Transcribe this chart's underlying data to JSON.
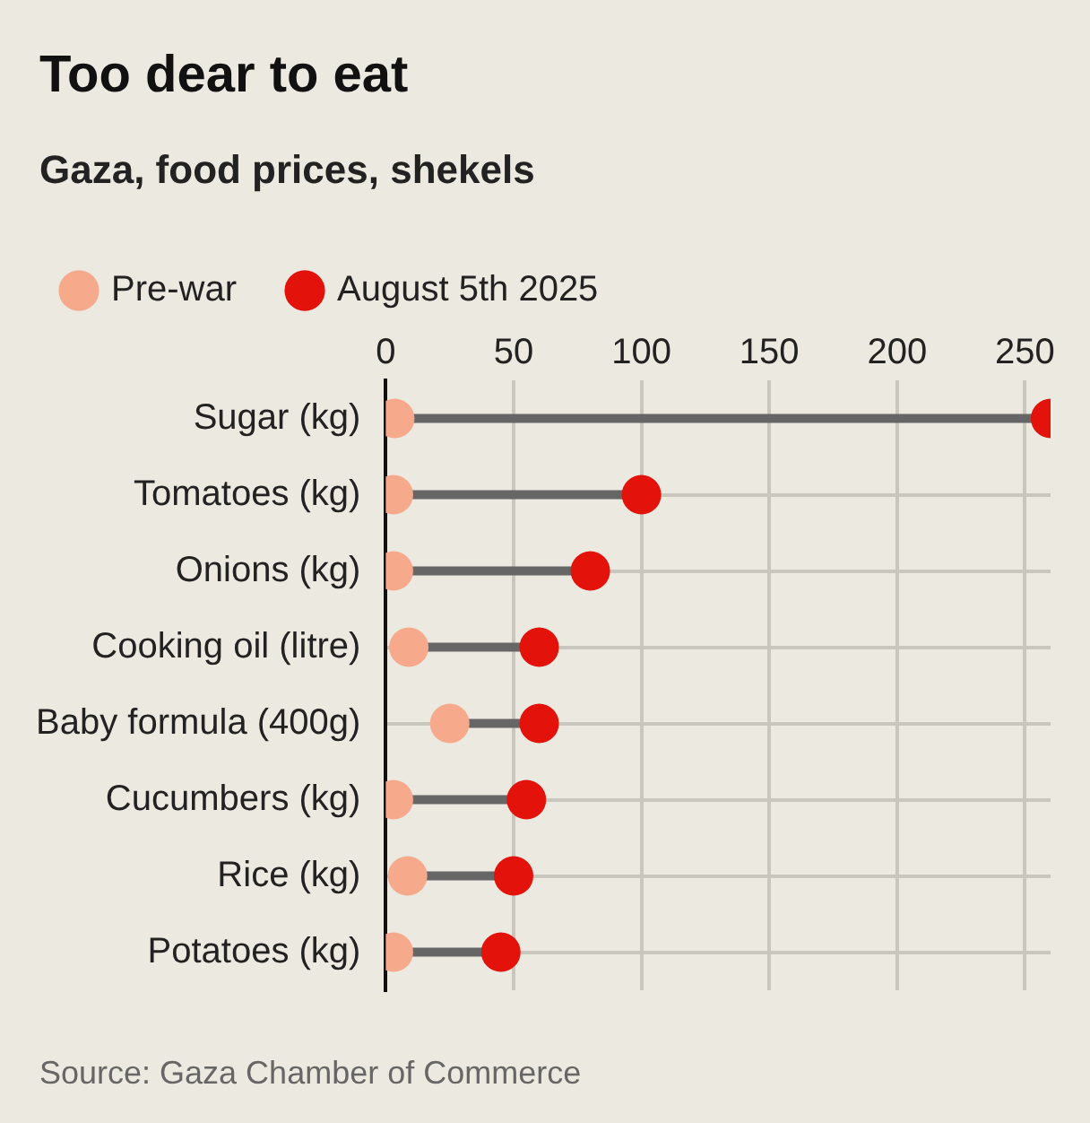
{
  "chart_data": {
    "type": "scatter",
    "orientation": "horizontal",
    "title": "Too dear to eat",
    "subtitle": "Gaza, food prices, shekels",
    "categories": [
      "Sugar (kg)",
      "Tomatoes (kg)",
      "Onions (kg)",
      "Cooking oil (litre)",
      "Baby formula (400g)",
      "Cucumbers (kg)",
      "Rice (kg)",
      "Potatoes (kg)"
    ],
    "series": [
      {
        "name": "Pre-war",
        "color": "#f7a98b",
        "values": [
          3.5,
          3,
          3,
          9,
          25,
          3,
          8.5,
          3
        ]
      },
      {
        "name": "August 5th 2025",
        "color": "#e3120b",
        "values": [
          260,
          100,
          80,
          60,
          60,
          55,
          50,
          45
        ]
      }
    ],
    "xlim": [
      0,
      260
    ],
    "xticks": [
      0,
      50,
      100,
      150,
      200,
      250
    ],
    "grid": true,
    "legend": "top left",
    "marker": "circle",
    "annotations": [
      "Source: Gaza Chamber of Commerce"
    ]
  }
}
